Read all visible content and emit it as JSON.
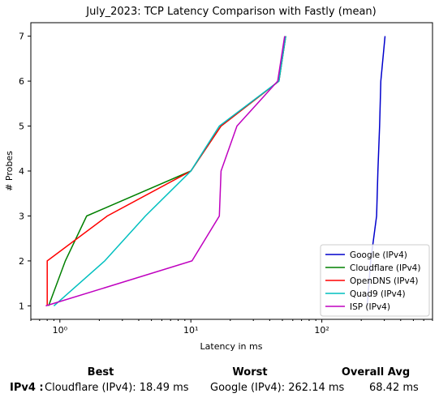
{
  "chart_data": {
    "type": "line",
    "title": "July_2023: TCP Latency Comparison with Fastly (mean)",
    "xlabel": "Latency in ms",
    "ylabel": "# Probes",
    "x_scale": "log",
    "xlim": [
      0.6,
      700
    ],
    "ylim": [
      0.7,
      7.3
    ],
    "x_ticks": [
      {
        "value": 1,
        "label": "10⁰"
      },
      {
        "value": 10,
        "label": "10¹"
      },
      {
        "value": 100,
        "label": "10²"
      }
    ],
    "y_ticks": [
      1,
      2,
      3,
      4,
      5,
      6,
      7
    ],
    "legend_position": "bottom-right",
    "grid": false,
    "series": [
      {
        "name": "Google (IPv4)",
        "color": "#0000cc",
        "x": [
          222,
          236,
          262,
          268,
          276,
          282,
          304
        ],
        "y": [
          1,
          2,
          3,
          4,
          5,
          6,
          7
        ]
      },
      {
        "name": "Cloudflare (IPv4)",
        "color": "#008000",
        "x": [
          0.82,
          1.1,
          1.6,
          10,
          17,
          47,
          53
        ],
        "y": [
          1,
          2,
          3,
          4,
          5,
          6,
          7
        ]
      },
      {
        "name": "OpenDNS (IPv4)",
        "color": "#ff0000",
        "x": [
          0.8,
          0.8,
          2.3,
          10,
          17,
          47,
          53
        ],
        "y": [
          1,
          2,
          3,
          4,
          5,
          6,
          7
        ]
      },
      {
        "name": "Quad9 (IPv4)",
        "color": "#00bfbf",
        "x": [
          0.9,
          2.2,
          4.5,
          10,
          16.5,
          47,
          53
        ],
        "y": [
          1,
          2,
          3,
          4,
          5,
          6,
          7
        ]
      },
      {
        "name": "ISP (IPv4)",
        "color": "#bf00bf",
        "x": [
          0.78,
          10.2,
          16.5,
          17,
          22.5,
          46,
          52
        ],
        "y": [
          1,
          2,
          3,
          4,
          5,
          6,
          7
        ]
      }
    ]
  },
  "summary": {
    "headers": {
      "best": "Best",
      "worst": "Worst",
      "avg": "Overall Avg"
    },
    "row_label": "IPv4 :",
    "best": "Cloudflare (IPv4): 18.49 ms",
    "worst": "Google (IPv4): 262.14 ms",
    "avg": "68.42 ms"
  }
}
